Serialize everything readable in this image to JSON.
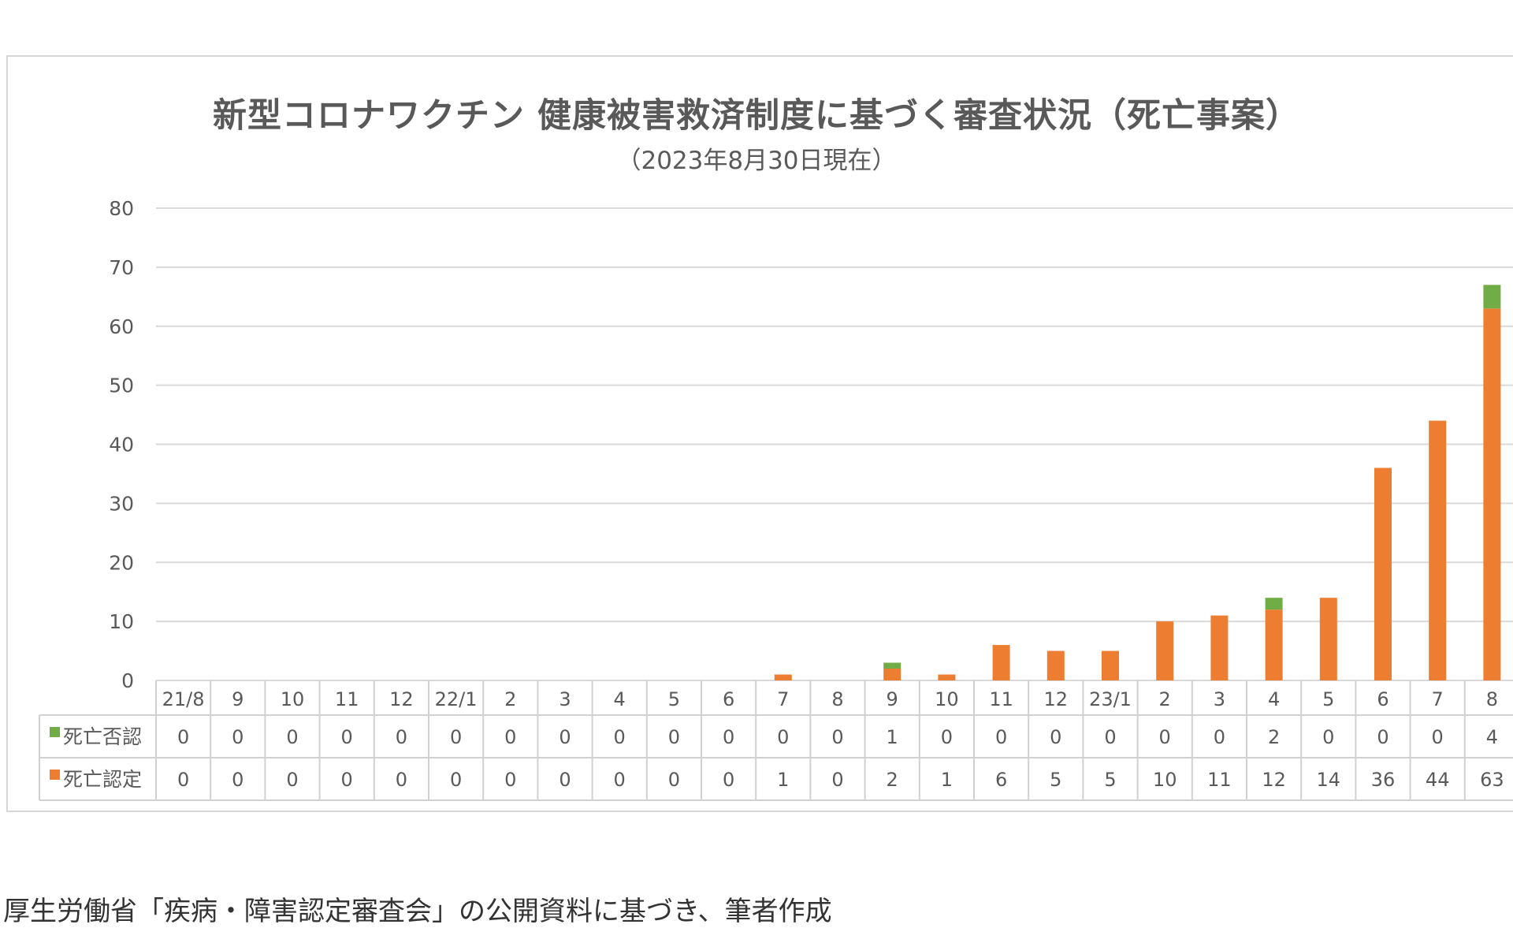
{
  "caption": "厚生労働省「疾病・障害認定審査会」の公開資料に基づき、筆者作成",
  "colors": {
    "approved": "#ED7D31",
    "denied": "#70AD47",
    "grid": "#d9d9d9",
    "text": "#595959"
  },
  "chart_data": {
    "type": "bar",
    "stacked": true,
    "title": "新型コロナワクチン 健康被害救済制度に基づく審査状況（死亡事案）",
    "subtitle": "（2023年8月30日現在）",
    "xlabel": "",
    "ylabel": "",
    "ylim": [
      0,
      80
    ],
    "yticks": [
      0,
      10,
      20,
      30,
      40,
      50,
      60,
      70,
      80
    ],
    "grid": true,
    "legend": "data-table",
    "categories": [
      "21/8",
      "9",
      "10",
      "11",
      "12",
      "22/1",
      "2",
      "3",
      "4",
      "5",
      "6",
      "7",
      "8",
      "9",
      "10",
      "11",
      "12",
      "23/1",
      "2",
      "3",
      "4",
      "5",
      "6",
      "7",
      "8"
    ],
    "series": [
      {
        "name": "死亡否認",
        "color": "#70AD47",
        "values": [
          0,
          0,
          0,
          0,
          0,
          0,
          0,
          0,
          0,
          0,
          0,
          0,
          0,
          1,
          0,
          0,
          0,
          0,
          0,
          0,
          2,
          0,
          0,
          0,
          4
        ]
      },
      {
        "name": "死亡認定",
        "color": "#ED7D31",
        "values": [
          0,
          0,
          0,
          0,
          0,
          0,
          0,
          0,
          0,
          0,
          0,
          1,
          0,
          2,
          1,
          6,
          5,
          5,
          10,
          11,
          12,
          14,
          36,
          44,
          63
        ]
      }
    ]
  }
}
